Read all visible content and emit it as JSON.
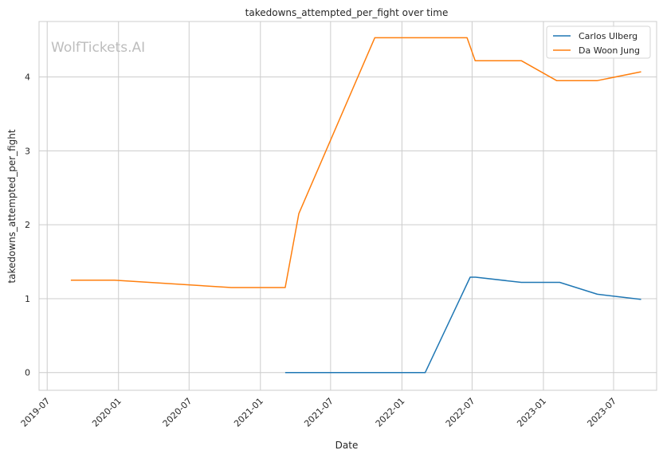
{
  "chart_data": {
    "type": "line",
    "title": "takedowns_attempted_per_fight over time",
    "xlabel": "Date",
    "ylabel": "takedowns_attempted_per_fight",
    "watermark": "WolfTickets.AI",
    "x_ticks": [
      "2019-07",
      "2020-01",
      "2020-07",
      "2021-01",
      "2021-07",
      "2022-01",
      "2022-07",
      "2023-01",
      "2023-07"
    ],
    "y_ticks": [
      0,
      1,
      2,
      3,
      4
    ],
    "xlim": [
      "2019-06-10",
      "2023-10-20"
    ],
    "ylim": [
      -0.24,
      4.75
    ],
    "grid": true,
    "legend_position": "top-right",
    "series": [
      {
        "name": "Carlos Ulberg",
        "color": "#1f77b4",
        "points": [
          {
            "x": "2021-03-06",
            "y": 0.0
          },
          {
            "x": "2022-03-02",
            "y": 0.0
          },
          {
            "x": "2022-06-26",
            "y": 1.29
          },
          {
            "x": "2022-07-10",
            "y": 1.29
          },
          {
            "x": "2022-11-05",
            "y": 1.22
          },
          {
            "x": "2023-02-12",
            "y": 1.22
          },
          {
            "x": "2023-05-20",
            "y": 1.06
          },
          {
            "x": "2023-09-10",
            "y": 0.99
          }
        ]
      },
      {
        "name": "Da Woon Jung",
        "color": "#ff7f0e",
        "points": [
          {
            "x": "2019-08-31",
            "y": 1.25
          },
          {
            "x": "2019-12-21",
            "y": 1.25
          },
          {
            "x": "2020-10-18",
            "y": 1.15
          },
          {
            "x": "2021-03-06",
            "y": 1.15
          },
          {
            "x": "2021-04-10",
            "y": 2.15
          },
          {
            "x": "2021-10-23",
            "y": 4.53
          },
          {
            "x": "2022-06-18",
            "y": 4.53
          },
          {
            "x": "2022-07-09",
            "y": 4.22
          },
          {
            "x": "2022-11-05",
            "y": 4.22
          },
          {
            "x": "2023-02-04",
            "y": 3.95
          },
          {
            "x": "2023-05-20",
            "y": 3.95
          },
          {
            "x": "2023-09-10",
            "y": 4.07
          }
        ]
      }
    ]
  }
}
